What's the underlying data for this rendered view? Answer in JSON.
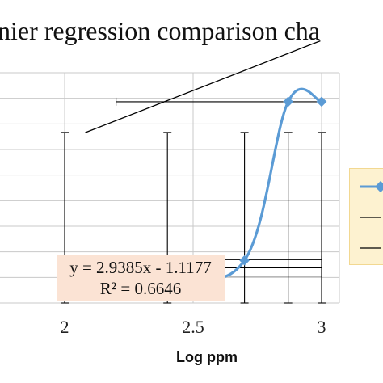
{
  "chart_data": {
    "type": "line",
    "title": "nier regression comparison cha",
    "xlabel": "Log ppm",
    "ylabel": "",
    "xlim": [
      2,
      3
    ],
    "x_ticks": [
      "2",
      "2.5",
      "3"
    ],
    "grid": true,
    "series": [
      {
        "color": "#5b9bd5",
        "marker": "diamond",
        "x": [
          2.0,
          2.4,
          2.7,
          2.87,
          3.0
        ],
        "y": [
          0.71,
          0.8,
          1.25,
          5.9,
          5.9
        ],
        "error_x_low": [
          0,
          0,
          0,
          0.67,
          0
        ],
        "error_x_high": [
          0,
          0,
          0,
          0,
          0
        ]
      }
    ],
    "vertical_error_bars": [
      {
        "x": 2.0,
        "low": 0.0,
        "high": 5.0
      },
      {
        "x": 2.4,
        "low": 0.0,
        "high": 5.0
      },
      {
        "x": 2.7,
        "low": 0.0,
        "high": 5.0
      },
      {
        "x": 2.87,
        "low": 0.0,
        "high": 5.0
      },
      {
        "x": 3.0,
        "low": 0.0,
        "high": 5.0
      }
    ],
    "horizontal_error_bars": [
      {
        "y": 5.9,
        "x_low": 2.2,
        "x_high": 3.0
      },
      {
        "y": 1.27,
        "x_low": 2.2,
        "x_high": 3.0
      },
      {
        "y": 1.03,
        "x_low": 2.2,
        "x_high": 3.0
      },
      {
        "y": 0.79,
        "x_low": 2.2,
        "x_high": 3.0
      }
    ],
    "trendline": {
      "type": "linear",
      "slope": 2.9385,
      "intercept": -1.1177,
      "equation": "y = 2.9385x - 1.1177",
      "r_squared": "R² = 0.6646",
      "color": "#000000"
    },
    "legend": {
      "position": "right",
      "background": "#fdf2d0"
    }
  }
}
